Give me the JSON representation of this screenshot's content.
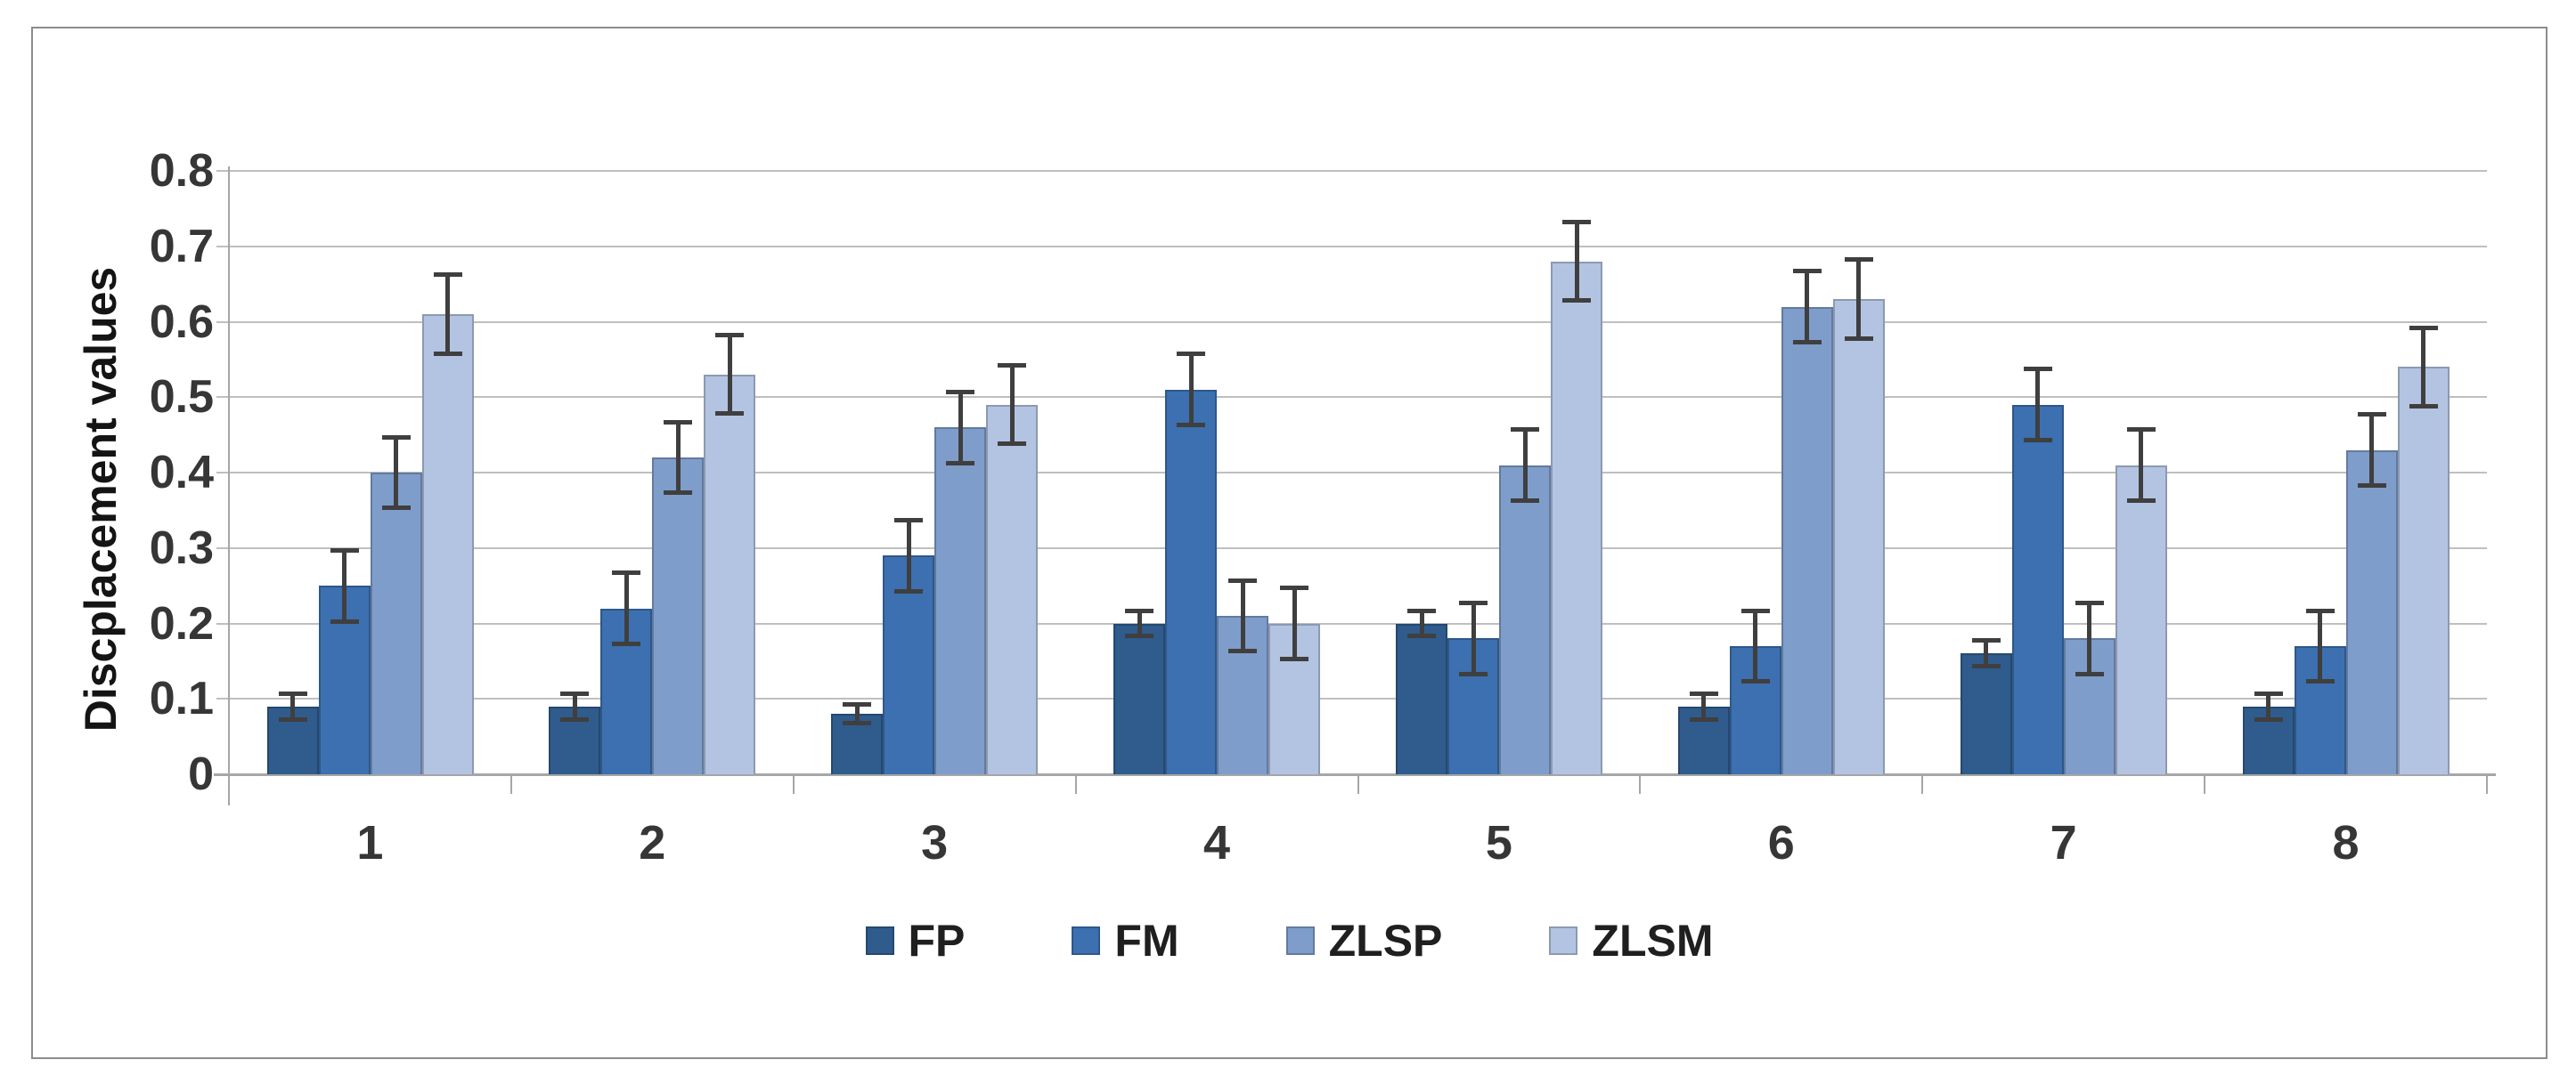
{
  "chart_data": {
    "type": "bar",
    "title": "",
    "xlabel": "",
    "ylabel": "Discplacement values",
    "categories": [
      "1",
      "2",
      "3",
      "4",
      "5",
      "6",
      "7",
      "8"
    ],
    "ylim": [
      0,
      0.8
    ],
    "y_ticks": [
      "0",
      "0.1",
      "0.2",
      "0.3",
      "0.4",
      "0.5",
      "0.6",
      "0.7",
      "0.8"
    ],
    "grid": true,
    "error_bars": true,
    "legend_position": "bottom",
    "series": [
      {
        "name": "FP",
        "color": "#2f5c8d",
        "values": [
          0.09,
          0.09,
          0.08,
          0.2,
          0.2,
          0.09,
          0.16,
          0.09
        ],
        "errors": [
          0.02,
          0.02,
          0.015,
          0.02,
          0.02,
          0.02,
          0.02,
          0.02
        ]
      },
      {
        "name": "FM",
        "color": "#3c70b0",
        "values": [
          0.25,
          0.22,
          0.29,
          0.51,
          0.18,
          0.17,
          0.49,
          0.17
        ],
        "errors": [
          0.05,
          0.05,
          0.05,
          0.05,
          0.05,
          0.05,
          0.05,
          0.05
        ]
      },
      {
        "name": "ZLSP",
        "color": "#7f9dcb",
        "values": [
          0.4,
          0.42,
          0.46,
          0.21,
          0.41,
          0.62,
          0.18,
          0.43
        ],
        "errors": [
          0.05,
          0.05,
          0.05,
          0.05,
          0.05,
          0.05,
          0.05,
          0.05
        ]
      },
      {
        "name": "ZLSM",
        "color": "#b3c4e2",
        "values": [
          0.61,
          0.53,
          0.49,
          0.2,
          0.68,
          0.63,
          0.41,
          0.54
        ],
        "errors": [
          0.055,
          0.055,
          0.055,
          0.05,
          0.055,
          0.055,
          0.05,
          0.055
        ]
      }
    ]
  },
  "colors": {
    "grid": "#bfbfbf",
    "axis": "#a6a6a6",
    "error_bar": "#3f3f3f",
    "frame_border": "#8c8c8c",
    "tick_label": "#363636",
    "legend_text": "#1f1f1f"
  }
}
